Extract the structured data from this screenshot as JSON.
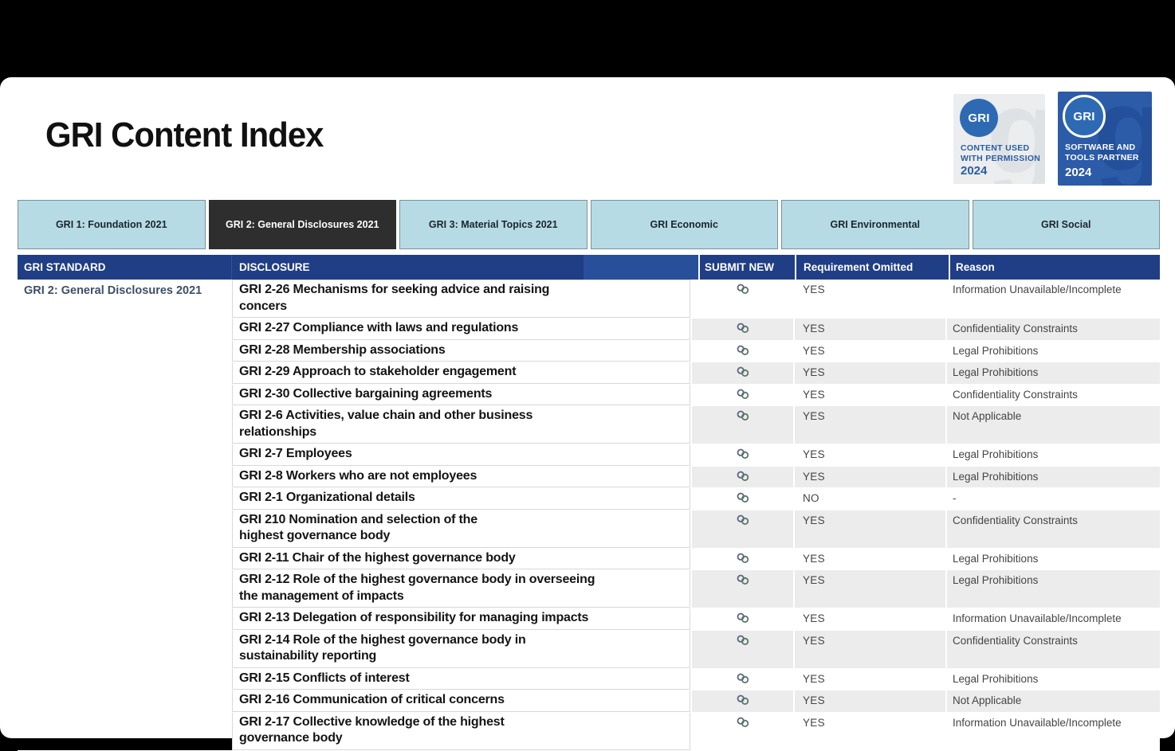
{
  "page": {
    "title": "GRI Content Index"
  },
  "badges": [
    {
      "circle_label": "GRI",
      "line1": "CONTENT USED",
      "line2": "WITH PERMISSION",
      "year": "2024"
    },
    {
      "circle_label": "GRI",
      "line1": "SOFTWARE AND",
      "line2": "TOOLS PARTNER",
      "year": "2024"
    }
  ],
  "tabs": [
    {
      "label": "GRI 1: Foundation 2021",
      "active": false
    },
    {
      "label": "GRI 2: General Disclosures 2021",
      "active": true
    },
    {
      "label": "GRI 3: Material Topics 2021",
      "active": false
    },
    {
      "label": "GRI Economic",
      "active": false
    },
    {
      "label": "GRI Environmental",
      "active": false
    },
    {
      "label": "GRI Social",
      "active": false
    }
  ],
  "table": {
    "headers": {
      "standard": "GRI STANDARD",
      "disclosure": "DISCLOSURE",
      "submit": "SUBMIT NEW",
      "omitted": "Requirement Omitted",
      "reason": "Reason"
    },
    "standard_label": "GRI 2: General Disclosures 2021",
    "submit_icon": "link-icon",
    "rows": [
      {
        "disclosure": "GRI 2-26 Mechanisms for seeking advice and raising\nconcers",
        "omitted": "YES",
        "reason": "Information Unavailable/Incomplete"
      },
      {
        "disclosure": "GRI 2-27 Compliance with laws and regulations",
        "omitted": "YES",
        "reason": "Confidentiality Constraints"
      },
      {
        "disclosure": "GRI 2-28 Membership associations",
        "omitted": "YES",
        "reason": "Legal Prohibitions"
      },
      {
        "disclosure": "GRI 2-29 Approach to stakeholder engagement",
        "omitted": "YES",
        "reason": "Legal Prohibitions"
      },
      {
        "disclosure": "GRI 2-30 Collective bargaining agreements",
        "omitted": "YES",
        "reason": "Confidentiality Constraints"
      },
      {
        "disclosure": "GRI 2-6 Activities, value chain and other business\nrelationships",
        "omitted": "YES",
        "reason": "Not Applicable"
      },
      {
        "disclosure": "GRI 2-7 Employees",
        "omitted": "YES",
        "reason": "Legal Prohibitions"
      },
      {
        "disclosure": "GRI 2-8 Workers who are not employees",
        "omitted": "YES",
        "reason": "Legal Prohibitions"
      },
      {
        "disclosure": "GRI 2-1 Organizational details",
        "omitted": "NO",
        "reason": "-"
      },
      {
        "disclosure": "GRI 210 Nomination and selection of the\nhighest governance body",
        "omitted": "YES",
        "reason": "Confidentiality Constraints"
      },
      {
        "disclosure": "GRI 2-11 Chair of the highest governance body",
        "omitted": "YES",
        "reason": "Legal Prohibitions"
      },
      {
        "disclosure": "GRI 2-12 Role of the highest governance body in overseeing\nthe management of impacts",
        "omitted": "YES",
        "reason": "Legal Prohibitions"
      },
      {
        "disclosure": "GRI 2-13 Delegation of responsibility for managing impacts",
        "omitted": "YES",
        "reason": "Information Unavailable/Incomplete"
      },
      {
        "disclosure": "GRI 2-14 Role of the highest governance body in\nsustainability reporting",
        "omitted": "YES",
        "reason": "Confidentiality Constraints"
      },
      {
        "disclosure": "GRI 2-15 Conflicts of interest",
        "omitted": "YES",
        "reason": "Legal Prohibitions"
      },
      {
        "disclosure": "GRI 2-16 Communication of critical concerns",
        "omitted": "YES",
        "reason": "Not Applicable"
      },
      {
        "disclosure": "GRI 2-17 Collective knowledge of the highest\ngovernance body",
        "omitted": "YES",
        "reason": "Information Unavailable/Incomplete"
      }
    ]
  },
  "colors": {
    "header_blue": "#1f3e85",
    "header_blue_light": "#28509a",
    "tab_blue": "#b6dbe4",
    "tab_active": "#2f2e2e",
    "zebra_gray": "#ececec",
    "badge_blue": "#2c5ba8",
    "gri_circle_blue": "#2d6ab3",
    "standard_text": "#3d4f66"
  }
}
